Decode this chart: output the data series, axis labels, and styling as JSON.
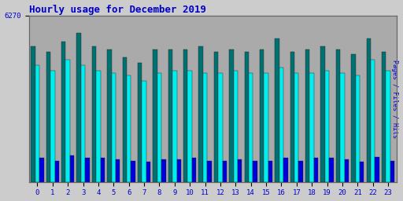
{
  "title": "Hourly usage for December 2019",
  "title_color": "#0000cc",
  "title_fontsize": 9,
  "hours": [
    0,
    1,
    2,
    3,
    4,
    5,
    6,
    7,
    8,
    9,
    10,
    11,
    12,
    13,
    14,
    15,
    16,
    17,
    18,
    19,
    20,
    21,
    22,
    23
  ],
  "pages": [
    5100,
    4900,
    5300,
    5600,
    5100,
    5000,
    4700,
    4500,
    5000,
    5000,
    5000,
    5100,
    4900,
    5000,
    4900,
    5000,
    5400,
    4900,
    5000,
    5100,
    5000,
    4800,
    5400,
    4900
  ],
  "files": [
    4400,
    4200,
    4600,
    4400,
    4200,
    4100,
    4000,
    3800,
    4100,
    4200,
    4200,
    4100,
    4100,
    4200,
    4100,
    4100,
    4300,
    4100,
    4100,
    4200,
    4100,
    4000,
    4600,
    4200
  ],
  "hits": [
    900,
    800,
    1000,
    900,
    900,
    850,
    800,
    750,
    850,
    850,
    900,
    800,
    800,
    850,
    800,
    800,
    900,
    800,
    900,
    900,
    850,
    750,
    950,
    800
  ],
  "pages_color": "#007070",
  "files_color": "#00eeee",
  "hits_color": "#0000dd",
  "ymax": 6270,
  "bg_color": "#cccccc",
  "plot_bg_color": "#aaaaaa",
  "bar_width": 0.28,
  "tick_label_color": "#0000cc",
  "tick_label_fontsize": 6.5,
  "ylabel": "Pages / Files / Hits",
  "ylabel_color": "#0000dd",
  "ylabel_fontsize": 6
}
